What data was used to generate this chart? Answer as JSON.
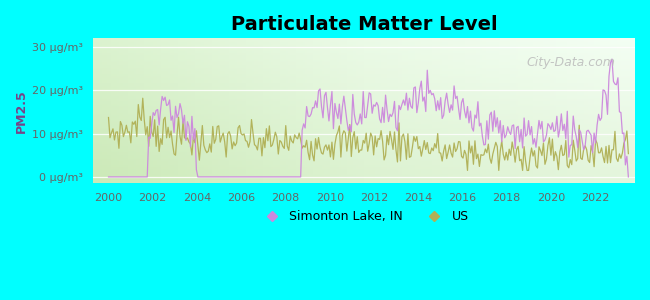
{
  "title": "Particulate Matter Level",
  "ylabel": "PM2.5",
  "background_color": "#00FFFF",
  "line1_label": "Simonton Lake, IN",
  "line2_label": "US",
  "line1_color": "#cc88dd",
  "line2_color": "#b0b055",
  "yticks": [
    0,
    10,
    20,
    30
  ],
  "ytick_labels": [
    "0 μg/m³",
    "10 μg/m³",
    "20 μg/m³",
    "30 μg/m³"
  ],
  "xtick_years": [
    2000,
    2002,
    2004,
    2006,
    2008,
    2010,
    2012,
    2014,
    2016,
    2018,
    2020,
    2022
  ],
  "xmin": 1999.3,
  "xmax": 2023.8,
  "ymin": -1.5,
  "ymax": 32,
  "watermark": "City-Data.com",
  "title_fontsize": 14,
  "tick_fontsize": 8,
  "ylabel_fontsize": 9,
  "legend_fontsize": 9,
  "watermark_fontsize": 9
}
